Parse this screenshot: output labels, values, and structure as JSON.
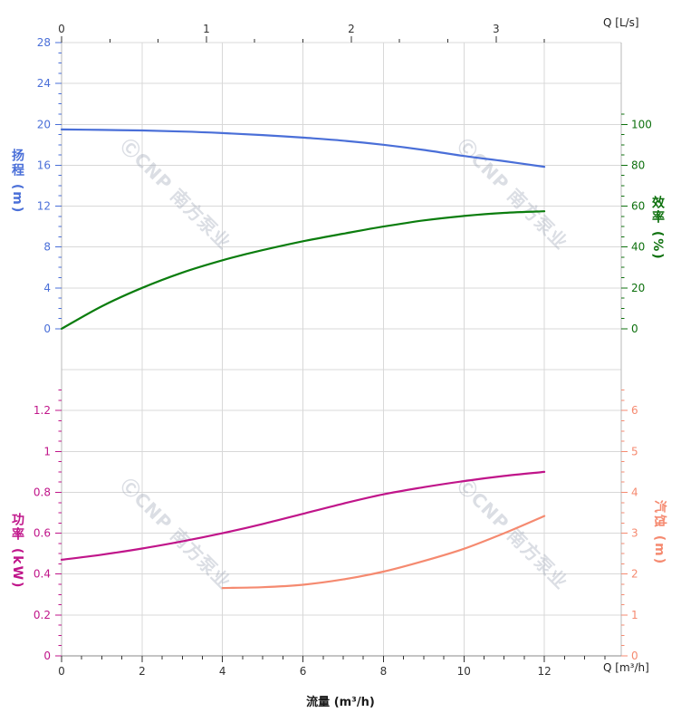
{
  "watermark": {
    "text": "ⒸCNP 南方泵业",
    "color": "rgba(165,173,188,0.40)"
  },
  "axes": {
    "flow": {
      "label": "流量 (m³/h)",
      "unit_label": "Q [m³/h]",
      "majors": [
        0,
        2,
        4,
        6,
        8,
        10,
        12
      ],
      "minor_step": 0.5,
      "minor_max": 13.5,
      "color": "#333333"
    },
    "flow_top": {
      "unit_label": "Q [L/s]",
      "majors": [
        0,
        1,
        2,
        3
      ],
      "minor_step": 0.3333,
      "minor_max": 3.34,
      "color": "#333333"
    },
    "head": {
      "label": "扬程 (m)",
      "majors": [
        0,
        4,
        8,
        12,
        16,
        20,
        24,
        28
      ],
      "minor_step": 1,
      "minor_max": 28,
      "color": "#4a6fd8"
    },
    "eff": {
      "label": "效率 (%)",
      "majors": [
        0,
        20,
        40,
        60,
        80,
        100
      ],
      "minor_step": 5,
      "minor_max": 105,
      "color": "#0d700d"
    },
    "power": {
      "label": "功率 (kW)",
      "majors": [
        0,
        0.2,
        0.4,
        0.6,
        0.8,
        1,
        1.2
      ],
      "minor_step": 0.05,
      "minor_max": 1.3,
      "color": "#c0158a"
    },
    "npsh": {
      "label": "汽蚀 (m)",
      "majors": [
        0,
        1,
        2,
        3,
        4,
        5,
        6
      ],
      "minor_step": 0.25,
      "minor_max": 6.5,
      "color": "#f58a70"
    }
  },
  "chart_data": {
    "type": "line",
    "title": "",
    "xlabel": "流量 (m³/h)",
    "xlabel_top": "Q [L/s]",
    "x_range_m3h": [
      0,
      12
    ],
    "x_range_ls": [
      0,
      3.33
    ],
    "grid": true,
    "legend": false,
    "series": [
      {
        "name": "扬程",
        "unit": "m",
        "axis": "head",
        "ylim": [
          0,
          28
        ],
        "color": "#4a6fd8",
        "x": [
          0,
          1,
          2,
          3,
          4,
          5,
          6,
          7,
          8,
          9,
          10,
          11,
          12
        ],
        "y": [
          19.5,
          19.46,
          19.4,
          19.3,
          19.15,
          18.95,
          18.7,
          18.4,
          18.0,
          17.5,
          16.9,
          16.4,
          15.85
        ]
      },
      {
        "name": "效率",
        "unit": "%",
        "axis": "eff",
        "ylim": [
          0,
          100
        ],
        "color": "#0b7d0e",
        "x": [
          0,
          1,
          2,
          3,
          4,
          5,
          6,
          7,
          8,
          9,
          10,
          11,
          12
        ],
        "y": [
          0,
          11,
          20,
          27.5,
          33.5,
          38.5,
          42.8,
          46.5,
          50,
          53,
          55.2,
          56.7,
          57.5
        ]
      },
      {
        "name": "功率",
        "unit": "kW",
        "axis": "power",
        "ylim": [
          0,
          1.2
        ],
        "color": "#c0158a",
        "x": [
          0,
          1,
          2,
          3,
          4,
          5,
          6,
          7,
          8,
          9,
          10,
          11,
          12
        ],
        "y": [
          0.47,
          0.495,
          0.525,
          0.56,
          0.6,
          0.645,
          0.695,
          0.745,
          0.79,
          0.825,
          0.855,
          0.88,
          0.9
        ]
      },
      {
        "name": "汽蚀",
        "unit": "m",
        "axis": "npsh",
        "ylim": [
          0,
          6
        ],
        "color": "#f58a70",
        "x": [
          4,
          5,
          6,
          7,
          8,
          9,
          10,
          11,
          12
        ],
        "y": [
          1.66,
          1.68,
          1.74,
          1.87,
          2.06,
          2.32,
          2.62,
          3.0,
          3.42
        ]
      }
    ]
  },
  "style": {
    "grid_color": "#d8d8d8",
    "border_color": "#b8b8b8",
    "bottom_axis_color": "#8a8a8a",
    "tick_label_color": "#333333"
  }
}
